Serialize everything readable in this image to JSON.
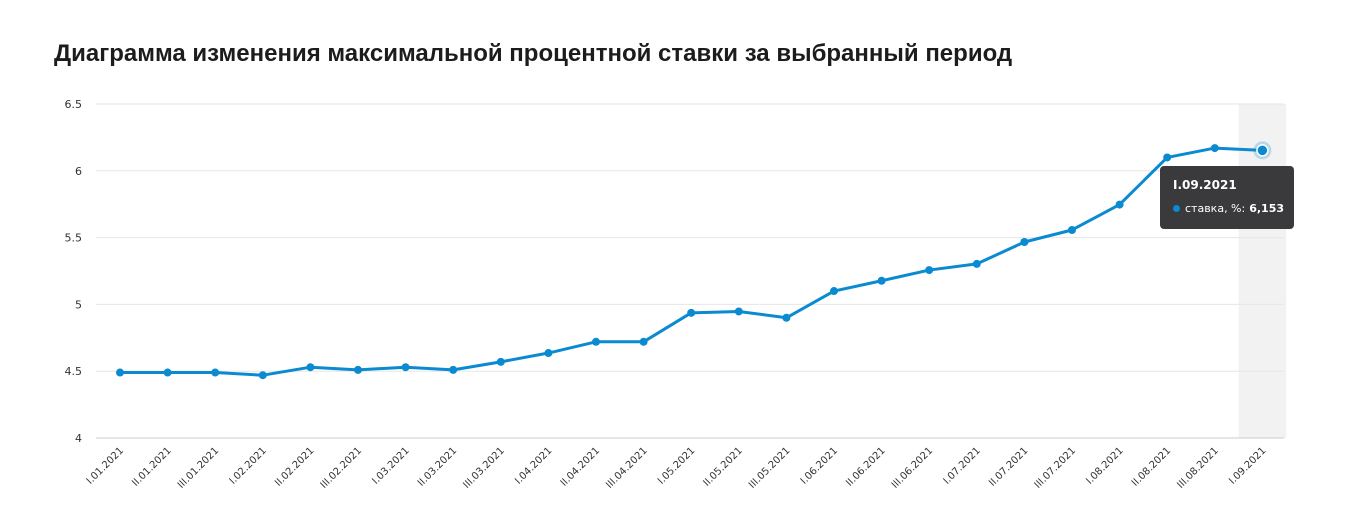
{
  "page": {
    "title": "Диаграмма изменения максимальной процентной ставки за выбранный период"
  },
  "chart_data": {
    "type": "line",
    "categories": [
      "I.01.2021",
      "II.01.2021",
      "III.01.2021",
      "I.02.2021",
      "II.02.2021",
      "III.02.2021",
      "I.03.2021",
      "II.03.2021",
      "III.03.2021",
      "I.04.2021",
      "II.04.2021",
      "III.04.2021",
      "I.05.2021",
      "II.05.2021",
      "III.05.2021",
      "I.06.2021",
      "II.06.2021",
      "III.06.2021",
      "I.07.2021",
      "II.07.2021",
      "III.07.2021",
      "I.08.2021",
      "II.08.2021",
      "III.08.2021",
      "I.09.2021"
    ],
    "series": [
      {
        "name": "ставка, %",
        "color": "#0a8ad1",
        "values": [
          4.49,
          4.49,
          4.49,
          4.47,
          4.53,
          4.51,
          4.53,
          4.51,
          4.57,
          4.636,
          4.72,
          4.72,
          4.937,
          4.947,
          4.9,
          5.1,
          5.177,
          5.257,
          5.303,
          5.467,
          5.557,
          5.747,
          6.1,
          6.17,
          6.153
        ]
      }
    ],
    "ylim": [
      4,
      6.5
    ],
    "yticks": [
      "4",
      "4.5",
      "5",
      "5.5",
      "6",
      "6.5"
    ],
    "grid": true,
    "highlighted_category": "I.09.2021"
  },
  "tooltip": {
    "title": "I.09.2021",
    "series_label": "ставка, %:",
    "value": "6,153"
  }
}
